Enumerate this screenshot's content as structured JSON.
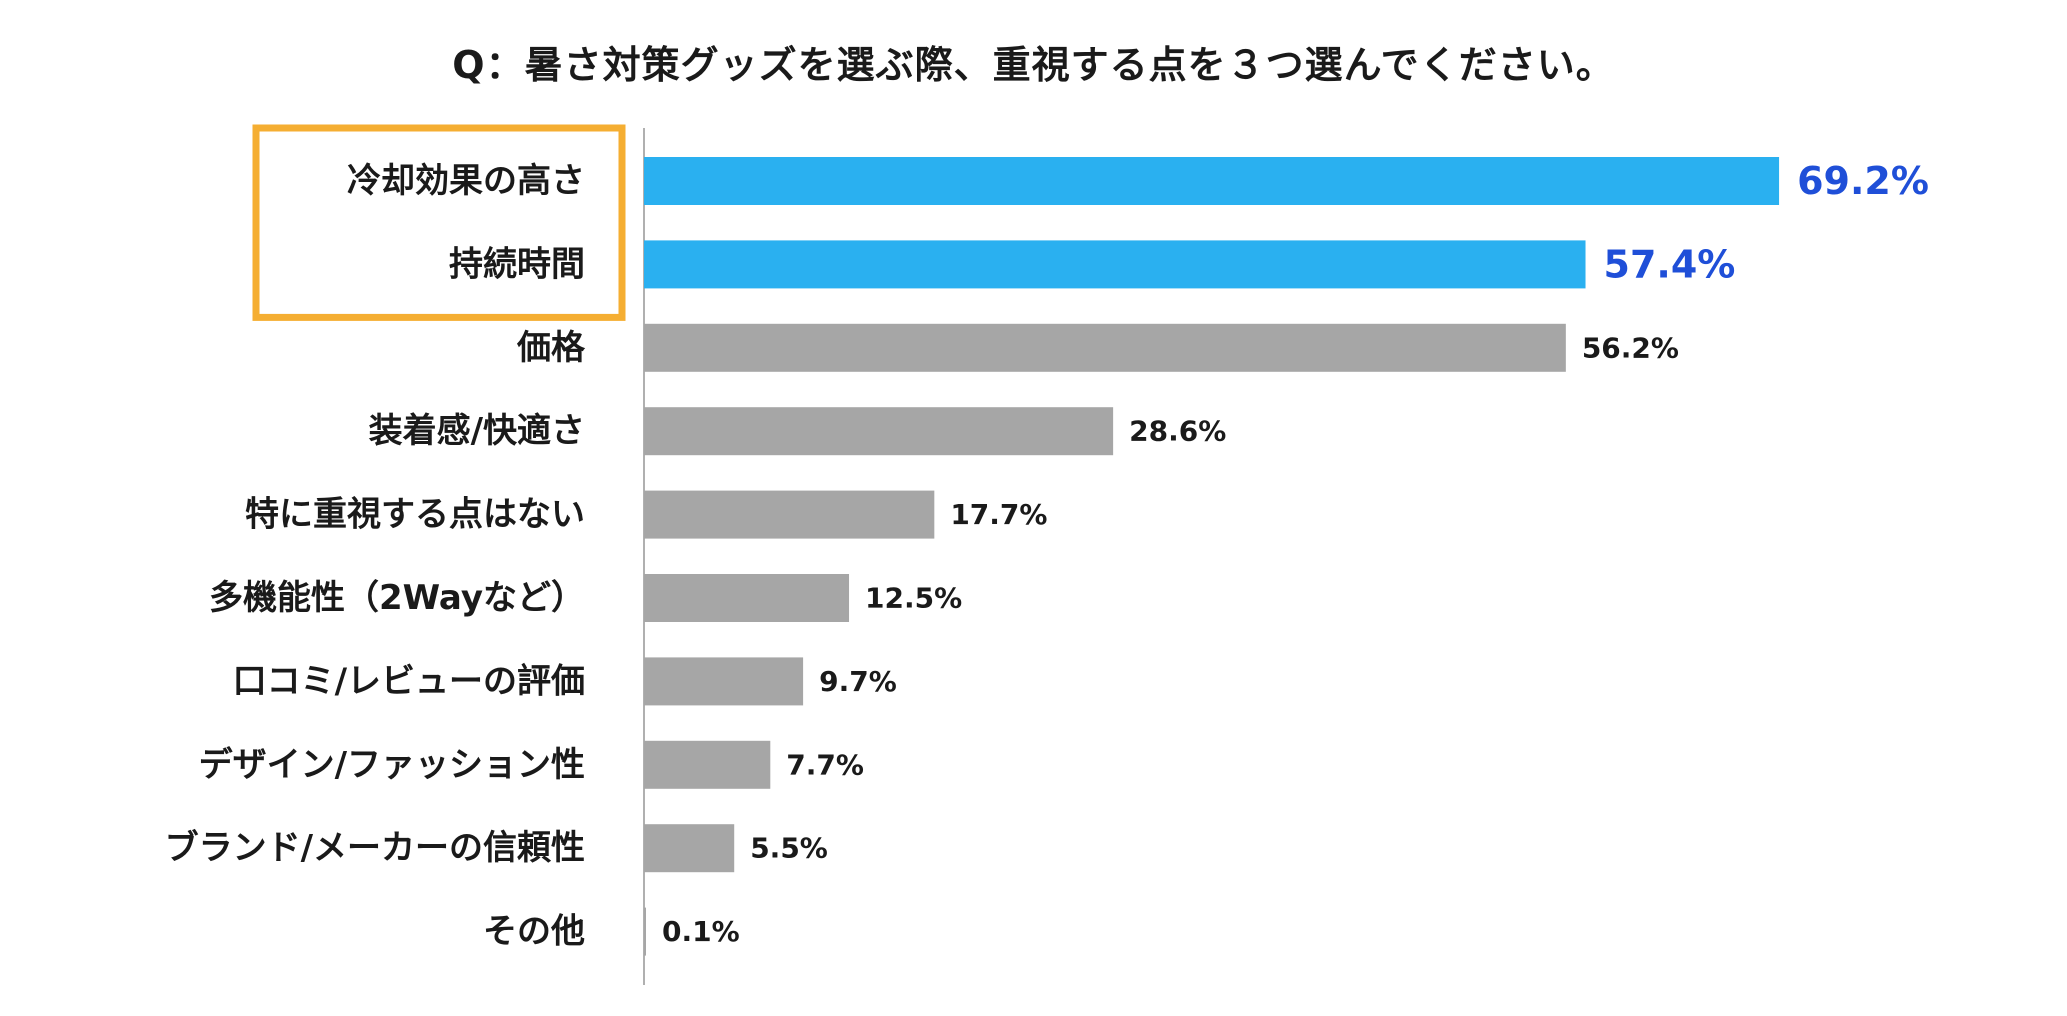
{
  "chart_data": {
    "type": "bar",
    "orientation": "horizontal",
    "title": "Q：暑さ対策グッズを選ぶ際、重視する点を３つ選んでください。",
    "categories": [
      "冷却効果の高さ",
      "持続時間",
      "価格",
      "装着感/快適さ",
      "特に重視する点はない",
      "多機能性（2Wayなど）",
      "口コミ/レビューの評価",
      "デザイン/ファッション性",
      "ブランド/メーカーの信頼性",
      "その他"
    ],
    "values": [
      69.2,
      57.4,
      56.2,
      28.6,
      17.7,
      12.5,
      9.7,
      7.7,
      5.5,
      0.1
    ],
    "data_labels": [
      "69.2%",
      "57.4%",
      "56.2%",
      "28.6%",
      "17.7%",
      "12.5%",
      "9.7%",
      "7.7%",
      "5.5%",
      "0.1%"
    ],
    "xlim": [
      0,
      72
    ],
    "grid": false,
    "legend": "none",
    "highlighted_categories": [
      "冷却効果の高さ",
      "持続時間"
    ],
    "colors": {
      "highlight_bar": "#2ab0f0",
      "highlight_label": "#1f4fd8",
      "normal_bar": "#a6a6a6",
      "normal_label": "#1a1a1a",
      "axis": "#b0b0b0",
      "highlight_box": "#f5ae32",
      "category_text": "#1a1a1a"
    }
  }
}
